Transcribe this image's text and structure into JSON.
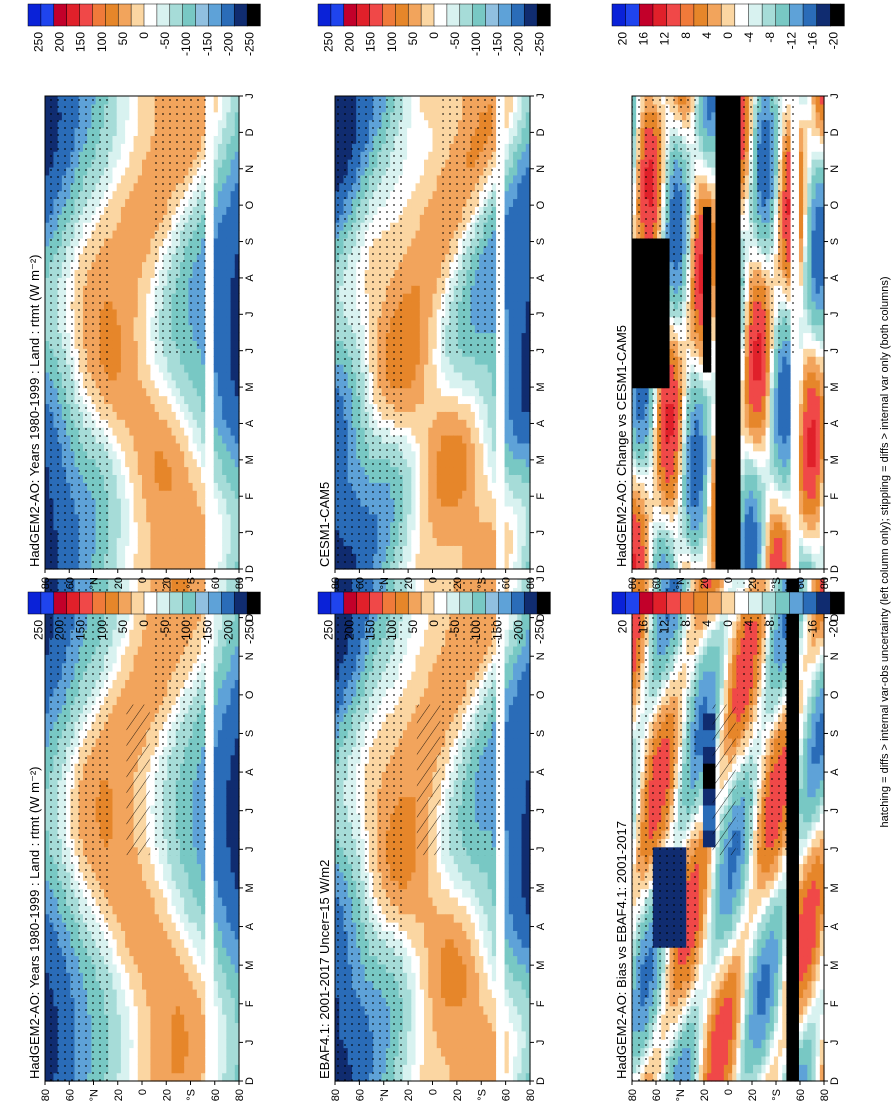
{
  "footnote": "hatching = diffs > internal var-obs uncertainty (left column only); stippling = diffs > internal var only (both columns)",
  "panel_titles": {
    "p11": "HadGEM2-AO: Years 1980-1999 : Land : rtmt (W m⁻²)",
    "p12": "HadGEM2-AO: Years 1980-1999 : Land : rtmt (W m⁻²)",
    "p21": "EBAF4.1: 2001-2017 Uncer=15 W/m2",
    "p22": "CESM1-CAM5",
    "p31": "HadGEM2-AO: Bias vs EBAF4.1: 2001-2017",
    "p32": "HadGEM2-AO: Change vs CESM1-CAM5"
  },
  "axis": {
    "months": [
      "D",
      "J",
      "F",
      "M",
      "A",
      "M",
      "J",
      "J",
      "A",
      "S",
      "O",
      "N",
      "D",
      "J"
    ],
    "lat_ticks": [
      "80",
      "60",
      "°N",
      "20",
      "0",
      "20",
      "°S",
      "60",
      "80"
    ]
  },
  "colorbars": {
    "abs_labels": [
      "250",
      "200",
      "150",
      "100",
      "50",
      "0",
      "-50",
      "-100",
      "-150",
      "-200",
      "-250"
    ],
    "diff_labels": [
      "20",
      "16",
      "12",
      "8",
      "4",
      "0",
      "-4",
      "-8",
      "-12",
      "-16",
      "-20"
    ]
  },
  "colors": {
    "scale": [
      "#0a22d8",
      "#1f44ee",
      "#c2002a",
      "#e0202a",
      "#f04848",
      "#f07a3a",
      "#e6862a",
      "#f2a45c",
      "#fbd6a2",
      "#ffffff",
      "#d8f2f0",
      "#a6dcd8",
      "#78c8c4",
      "#90c0e0",
      "#5ea2d8",
      "#2a6cb8",
      "#102c70",
      "#000000"
    ],
    "diff_scale": [
      "#0a22d8",
      "#1f44ee",
      "#c2002a",
      "#e0202a",
      "#f04848",
      "#f07a3a",
      "#e6862a",
      "#f2a45c",
      "#fbd6a2",
      "#ffffff",
      "#d8f2f0",
      "#a6dcd8",
      "#78c8c4",
      "#5ea2d8",
      "#2a6cb8",
      "#102c70",
      "#000000"
    ]
  },
  "chart_data": [
    {
      "type": "heatmap",
      "title": "HadGEM2-AO: Years 1980-1999 : Land : rtmt (W m⁻²)",
      "variable": "rtmt (W m⁻²)",
      "x": [
        "D",
        "J",
        "F",
        "M",
        "A",
        "M",
        "J",
        "J",
        "A",
        "S",
        "O",
        "N",
        "D",
        "J"
      ],
      "y": [
        "80N",
        "60N",
        "40N",
        "20N",
        "0",
        "20S",
        "40S",
        "60S",
        "80S"
      ],
      "colorbar": [
        250,
        200,
        150,
        100,
        50,
        0,
        -50,
        -100,
        -150,
        -200,
        -250
      ],
      "field": "abs",
      "overlay": "hatching + stippling"
    },
    {
      "type": "heatmap",
      "title": "HadGEM2-AO: Years 1980-1999 : Land : rtmt (W m⁻²)",
      "variable": "rtmt (W m⁻²)",
      "x": [
        "D",
        "J",
        "F",
        "M",
        "A",
        "M",
        "J",
        "J",
        "A",
        "S",
        "O",
        "N",
        "D",
        "J"
      ],
      "y": [
        "80N",
        "60N",
        "40N",
        "20N",
        "0",
        "20S",
        "40S",
        "60S",
        "80S"
      ],
      "colorbar": [
        250,
        200,
        150,
        100,
        50,
        0,
        -50,
        -100,
        -150,
        -200,
        -250
      ],
      "field": "abs",
      "overlay": "stippling"
    },
    {
      "type": "heatmap",
      "title": "EBAF4.1: 2001-2017 Uncer=15 W/m2",
      "x": [
        "D",
        "J",
        "F",
        "M",
        "A",
        "M",
        "J",
        "J",
        "A",
        "S",
        "O",
        "N",
        "D",
        "J"
      ],
      "y": [
        "80N",
        "60N",
        "40N",
        "20N",
        "0",
        "20S",
        "40S",
        "60S",
        "80S"
      ],
      "colorbar": [
        250,
        200,
        150,
        100,
        50,
        0,
        -50,
        -100,
        -150,
        -200,
        -250
      ],
      "field": "abs",
      "overlay": "hatching + stippling"
    },
    {
      "type": "heatmap",
      "title": "CESM1-CAM5",
      "x": [
        "D",
        "J",
        "F",
        "M",
        "A",
        "M",
        "J",
        "J",
        "A",
        "S",
        "O",
        "N",
        "D",
        "J"
      ],
      "y": [
        "80N",
        "60N",
        "40N",
        "20N",
        "0",
        "20S",
        "40S",
        "60S",
        "80S"
      ],
      "colorbar": [
        250,
        200,
        150,
        100,
        50,
        0,
        -50,
        -100,
        -150,
        -200,
        -250
      ],
      "field": "abs",
      "overlay": "stippling"
    },
    {
      "type": "heatmap",
      "title": "HadGEM2-AO: Bias vs EBAF4.1: 2001-2017",
      "x": [
        "D",
        "J",
        "F",
        "M",
        "A",
        "M",
        "J",
        "J",
        "A",
        "S",
        "O",
        "N",
        "D",
        "J"
      ],
      "y": [
        "80N",
        "60N",
        "40N",
        "20N",
        "0",
        "20S",
        "40S",
        "60S",
        "80S"
      ],
      "colorbar": [
        20,
        16,
        12,
        8,
        4,
        0,
        -4,
        -8,
        -12,
        -16,
        -20
      ],
      "field": "bias",
      "overlay": "hatching + stippling"
    },
    {
      "type": "heatmap",
      "title": "HadGEM2-AO: Change vs CESM1-CAM5",
      "x": [
        "D",
        "J",
        "F",
        "M",
        "A",
        "M",
        "J",
        "J",
        "A",
        "S",
        "O",
        "N",
        "D",
        "J"
      ],
      "y": [
        "80N",
        "60N",
        "40N",
        "20N",
        "0",
        "20S",
        "40S",
        "60S",
        "80S"
      ],
      "colorbar": [
        20,
        16,
        12,
        8,
        4,
        0,
        -4,
        -8,
        -12,
        -16,
        -20
      ],
      "field": "change",
      "overlay": "stippling"
    }
  ]
}
